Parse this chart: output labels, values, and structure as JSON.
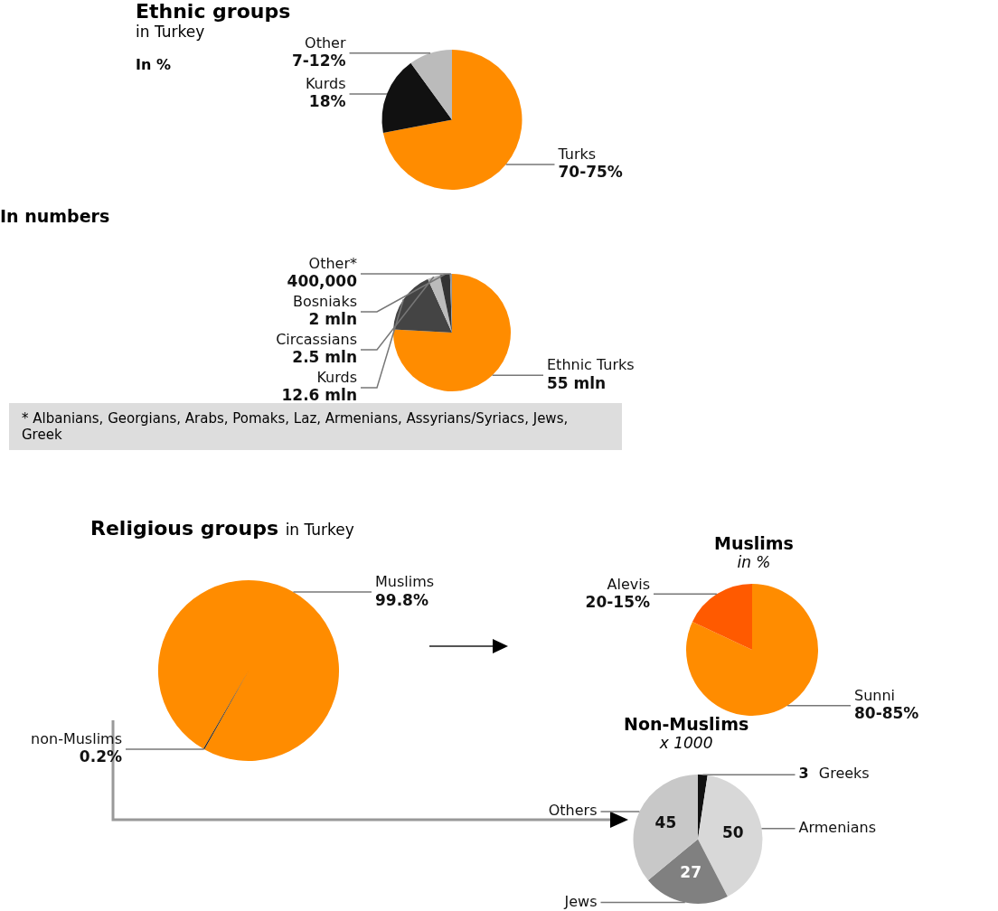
{
  "chart_data": [
    {
      "type": "pie",
      "title": "Ethnic groups",
      "subtitle": "in Turkey",
      "annotations": [
        "In %",
        {
          "text": "70-75%",
          "x": "Turks"
        },
        {
          "text": "7-12%",
          "x": "Other"
        }
      ],
      "categories": [
        "Turks",
        "Kurds",
        "Other"
      ],
      "values": [
        72,
        18,
        10
      ],
      "colors": [
        "#ff8c00",
        "#111111",
        "#bbbbbb"
      ],
      "value_labels": [
        null,
        "18%",
        null
      ]
    },
    {
      "type": "pie",
      "title": "In numbers",
      "annotations": [
        "* Albanians, Georgians, Arabs, Pomaks, Laz, Armenians, Assyrians/Syriacs, Jews, Greek",
        {
          "text": "400,000",
          "x": "Other*"
        }
      ],
      "categories": [
        "Ethnic Turks",
        "Kurds",
        "Circassians",
        "Bosniaks",
        "Other*"
      ],
      "values": [
        55,
        12.6,
        2.5,
        2,
        0.4
      ],
      "colors": [
        "#ff8c00",
        "#444444",
        "#bbbbbb",
        "#333333",
        "#999999"
      ],
      "value_labels": [
        "55 mln",
        "12.6 mln",
        "2.5 mln",
        "2 mln",
        null
      ]
    },
    {
      "type": "pie",
      "title": "Religious groups",
      "subtitle": "in Turkey",
      "categories": [
        "Muslims",
        "non-Muslims"
      ],
      "values": [
        99.8,
        0.2
      ],
      "colors": [
        "#ff8c00",
        "#222222"
      ],
      "value_labels": [
        "99.8%",
        "0.2%"
      ]
    },
    {
      "type": "pie",
      "title": "Muslims",
      "subtitle": "in %",
      "categories": [
        "Sunni",
        "Alevis"
      ],
      "values": [
        82,
        18
      ],
      "colors": [
        "#ff8c00",
        "#ff5a00"
      ],
      "annotations": [
        {
          "text": "80-85%",
          "x": "Sunni"
        },
        {
          "text": "20-15%",
          "x": "Alevis"
        }
      ]
    },
    {
      "type": "pie",
      "title": "Non-Muslims",
      "subtitle": "x 1000",
      "categories": [
        "Greeks",
        "Armenians",
        "Jews",
        "Others"
      ],
      "values": [
        3,
        50,
        27,
        45
      ],
      "colors": [
        "#111111",
        "#d8d8d8",
        "#808080",
        "#c8c8c8"
      ],
      "data_labels": true
    }
  ]
}
